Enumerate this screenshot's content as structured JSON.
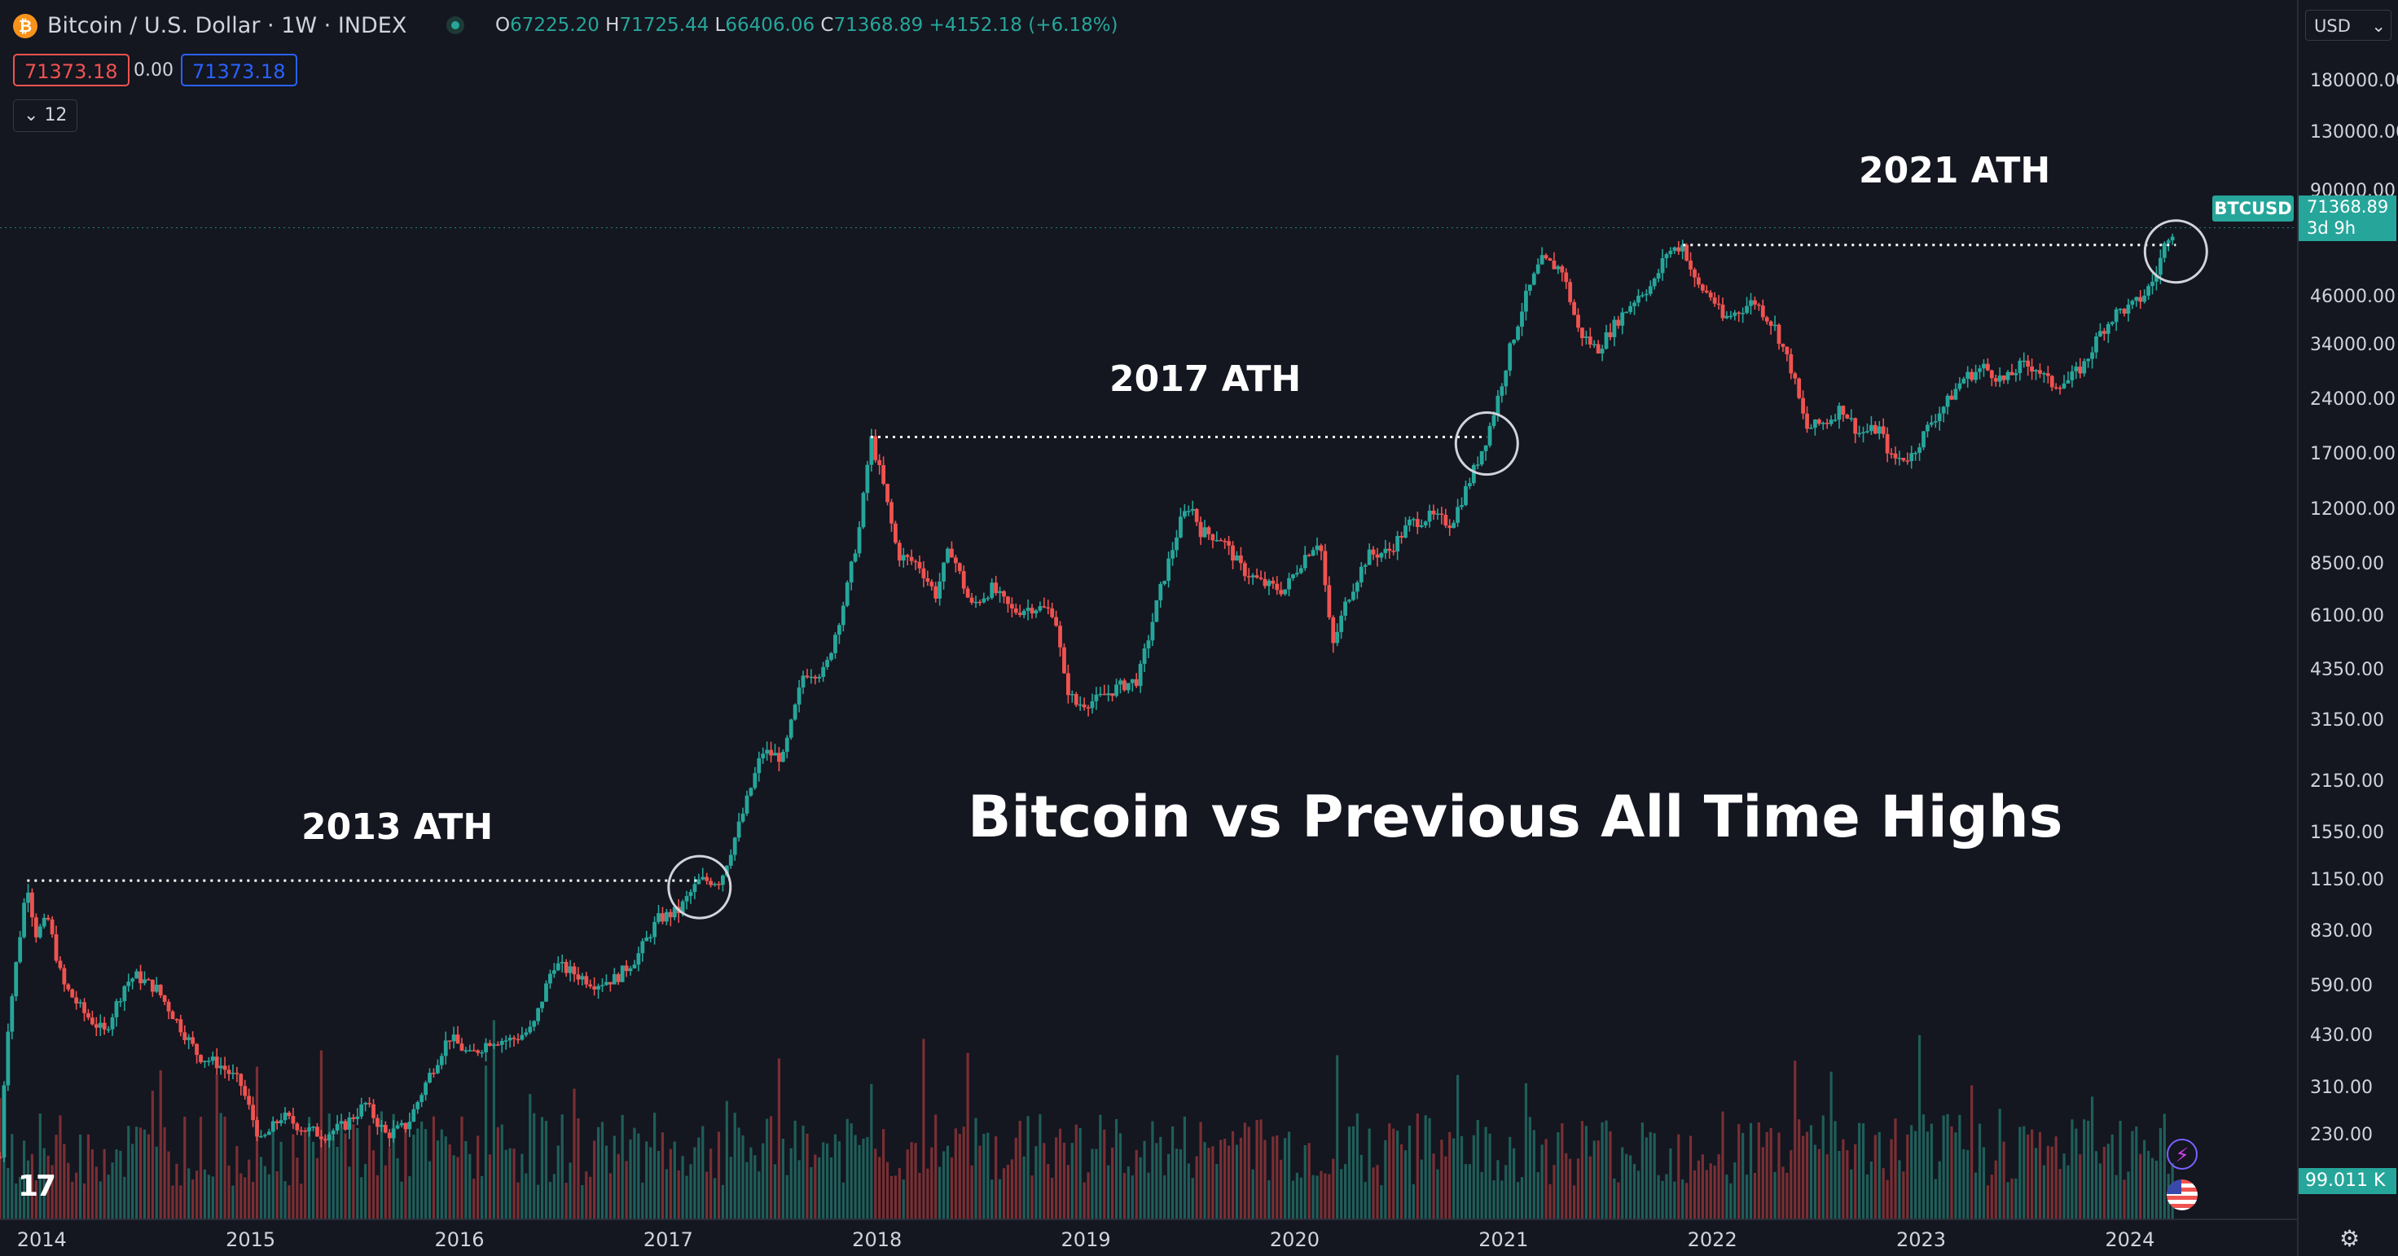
{
  "header": {
    "title": "Bitcoin / U.S. Dollar · 1W · INDEX",
    "open_label": "O",
    "open": "67225.20",
    "high_label": "H",
    "high": "71725.44",
    "low_label": "L",
    "low": "66406.06",
    "close_label": "C",
    "close": "71368.89",
    "change": "+4152.18 (+6.18%)",
    "sell_price": "71373.18",
    "spread": "0.00",
    "buy_price": "71373.18",
    "indicators_toggle": "12"
  },
  "currency_select": "USD",
  "symbol_badge": "BTCUSD",
  "last_price_tag": "71368.89",
  "countdown": "3d 9h",
  "volume_tag": "99.011 K",
  "annotations": {
    "title": "Bitcoin vs Previous All Time Highs",
    "ath_2013": "2013 ATH",
    "ath_2017": "2017 ATH",
    "ath_2021": "2021 ATH"
  },
  "colors": {
    "background": "#141620",
    "up": "#26a69a",
    "down": "#ef5350",
    "vol_up": "#1f5e59",
    "vol_down": "#7a2f33",
    "price_tag": "#26a69a",
    "sell_chip": "#ef5350",
    "buy_chip": "#2962ff"
  },
  "icons": [
    "bitcoin-logo-icon",
    "market-status-dot-icon",
    "chevron-down-icon",
    "tradingview-logo-icon",
    "flash-icon",
    "us-flag-icon",
    "settings-gear-icon"
  ],
  "chart_data": {
    "type": "candlestick",
    "title": "Bitcoin vs Previous All Time Highs",
    "interval": "1W",
    "y_scale": "log",
    "ylim": [
      140,
      210000
    ],
    "y_ticks": [
      180000,
      130000,
      90000,
      46000,
      34000,
      24000,
      17000,
      12000,
      8500,
      6100,
      4350,
      3150,
      2150,
      1550,
      1150,
      830,
      590,
      430,
      310,
      230
    ],
    "y_tick_labels": [
      "180000.00",
      "130000.00",
      "90000.00",
      "46000.00",
      "34000.00",
      "24000.00",
      "17000.00",
      "12000.00",
      "8500.00",
      "6100.00",
      "4350.00",
      "3150.00",
      "2150.00",
      "1550.00",
      "1150.00",
      "830.00",
      "590.00",
      "430.00",
      "310.00",
      "230.00"
    ],
    "x_ticks": [
      "2014",
      "2015",
      "2016",
      "2017",
      "2018",
      "2019",
      "2020",
      "2021",
      "2022",
      "2023",
      "2024"
    ],
    "x_tick_values": [
      2014,
      2015,
      2016,
      2017,
      2018,
      2019,
      2020,
      2021,
      2022,
      2023,
      2024
    ],
    "xlim": [
      2013.8,
      2024.8
    ],
    "price_path": [
      [
        2013.8,
        200
      ],
      [
        2013.83,
        420
      ],
      [
        2013.88,
        700
      ],
      [
        2013.93,
        1150
      ],
      [
        2013.97,
        820
      ],
      [
        2014.03,
        900
      ],
      [
        2014.1,
        600
      ],
      [
        2014.2,
        500
      ],
      [
        2014.3,
        440
      ],
      [
        2014.4,
        600
      ],
      [
        2014.45,
        630
      ],
      [
        2014.55,
        580
      ],
      [
        2014.65,
        470
      ],
      [
        2014.75,
        380
      ],
      [
        2014.85,
        360
      ],
      [
        2014.95,
        320
      ],
      [
        2015.05,
        220
      ],
      [
        2015.15,
        260
      ],
      [
        2015.25,
        240
      ],
      [
        2015.35,
        230
      ],
      [
        2015.45,
        245
      ],
      [
        2015.55,
        280
      ],
      [
        2015.65,
        230
      ],
      [
        2015.75,
        245
      ],
      [
        2015.85,
        330
      ],
      [
        2015.95,
        430
      ],
      [
        2016.05,
        380
      ],
      [
        2016.15,
        420
      ],
      [
        2016.25,
        420
      ],
      [
        2016.35,
        450
      ],
      [
        2016.45,
        680
      ],
      [
        2016.55,
        640
      ],
      [
        2016.65,
        600
      ],
      [
        2016.75,
        620
      ],
      [
        2016.85,
        710
      ],
      [
        2016.95,
        900
      ],
      [
        2017.05,
        950
      ],
      [
        2017.1,
        1050
      ],
      [
        2017.15,
        1150
      ],
      [
        2017.25,
        1150
      ],
      [
        2017.35,
        1700
      ],
      [
        2017.45,
        2600
      ],
      [
        2017.55,
        2500
      ],
      [
        2017.65,
        4300
      ],
      [
        2017.75,
        4300
      ],
      [
        2017.85,
        7000
      ],
      [
        2017.92,
        11000
      ],
      [
        2017.97,
        19000
      ],
      [
        2018.03,
        14000
      ],
      [
        2018.1,
        9000
      ],
      [
        2018.2,
        8500
      ],
      [
        2018.28,
        7000
      ],
      [
        2018.35,
        9500
      ],
      [
        2018.45,
        6500
      ],
      [
        2018.55,
        7300
      ],
      [
        2018.65,
        6300
      ],
      [
        2018.75,
        6500
      ],
      [
        2018.85,
        6300
      ],
      [
        2018.9,
        4000
      ],
      [
        2018.95,
        3500
      ],
      [
        2019.05,
        3600
      ],
      [
        2019.15,
        3900
      ],
      [
        2019.25,
        4100
      ],
      [
        2019.35,
        7000
      ],
      [
        2019.45,
        11000
      ],
      [
        2019.5,
        12500
      ],
      [
        2019.55,
        10500
      ],
      [
        2019.65,
        10000
      ],
      [
        2019.75,
        8200
      ],
      [
        2019.85,
        7500
      ],
      [
        2019.95,
        7200
      ],
      [
        2020.05,
        9000
      ],
      [
        2020.12,
        10000
      ],
      [
        2020.18,
        5000
      ],
      [
        2020.25,
        6800
      ],
      [
        2020.35,
        9000
      ],
      [
        2020.45,
        9200
      ],
      [
        2020.55,
        11000
      ],
      [
        2020.65,
        11500
      ],
      [
        2020.75,
        11000
      ],
      [
        2020.85,
        15000
      ],
      [
        2020.92,
        19000
      ],
      [
        2020.97,
        24000
      ],
      [
        2021.03,
        33000
      ],
      [
        2021.1,
        45000
      ],
      [
        2021.18,
        58000
      ],
      [
        2021.28,
        55000
      ],
      [
        2021.36,
        37000
      ],
      [
        2021.45,
        33000
      ],
      [
        2021.55,
        40000
      ],
      [
        2021.65,
        47000
      ],
      [
        2021.72,
        50000
      ],
      [
        2021.78,
        61000
      ],
      [
        2021.86,
        64000
      ],
      [
        2021.92,
        50000
      ],
      [
        2022.0,
        46000
      ],
      [
        2022.05,
        40000
      ],
      [
        2022.12,
        42000
      ],
      [
        2022.2,
        45000
      ],
      [
        2022.3,
        38000
      ],
      [
        2022.38,
        29000
      ],
      [
        2022.45,
        20000
      ],
      [
        2022.55,
        21000
      ],
      [
        2022.62,
        23000
      ],
      [
        2022.7,
        19500
      ],
      [
        2022.8,
        20000
      ],
      [
        2022.86,
        16500
      ],
      [
        2022.95,
        16800
      ],
      [
        2023.05,
        21000
      ],
      [
        2023.12,
        23500
      ],
      [
        2023.2,
        27500
      ],
      [
        2023.3,
        29500
      ],
      [
        2023.4,
        27000
      ],
      [
        2023.48,
        30000
      ],
      [
        2023.55,
        29500
      ],
      [
        2023.62,
        26500
      ],
      [
        2023.7,
        27000
      ],
      [
        2023.78,
        30000
      ],
      [
        2023.86,
        37000
      ],
      [
        2023.94,
        42000
      ],
      [
        2024.0,
        43000
      ],
      [
        2024.06,
        46000
      ],
      [
        2024.12,
        52000
      ],
      [
        2024.18,
        68000
      ],
      [
        2024.22,
        71369
      ]
    ],
    "ath_lines": [
      {
        "label": "2013 ATH",
        "price": 1150,
        "from": 2013.93,
        "to": 2017.15
      },
      {
        "label": "2017 ATH",
        "price": 19000,
        "from": 2017.97,
        "to": 2020.92
      },
      {
        "label": "2021 ATH",
        "price": 64000,
        "from": 2021.86,
        "to": 2024.22
      }
    ],
    "last_price": 71368.89,
    "volume_last": "99.011 K"
  }
}
